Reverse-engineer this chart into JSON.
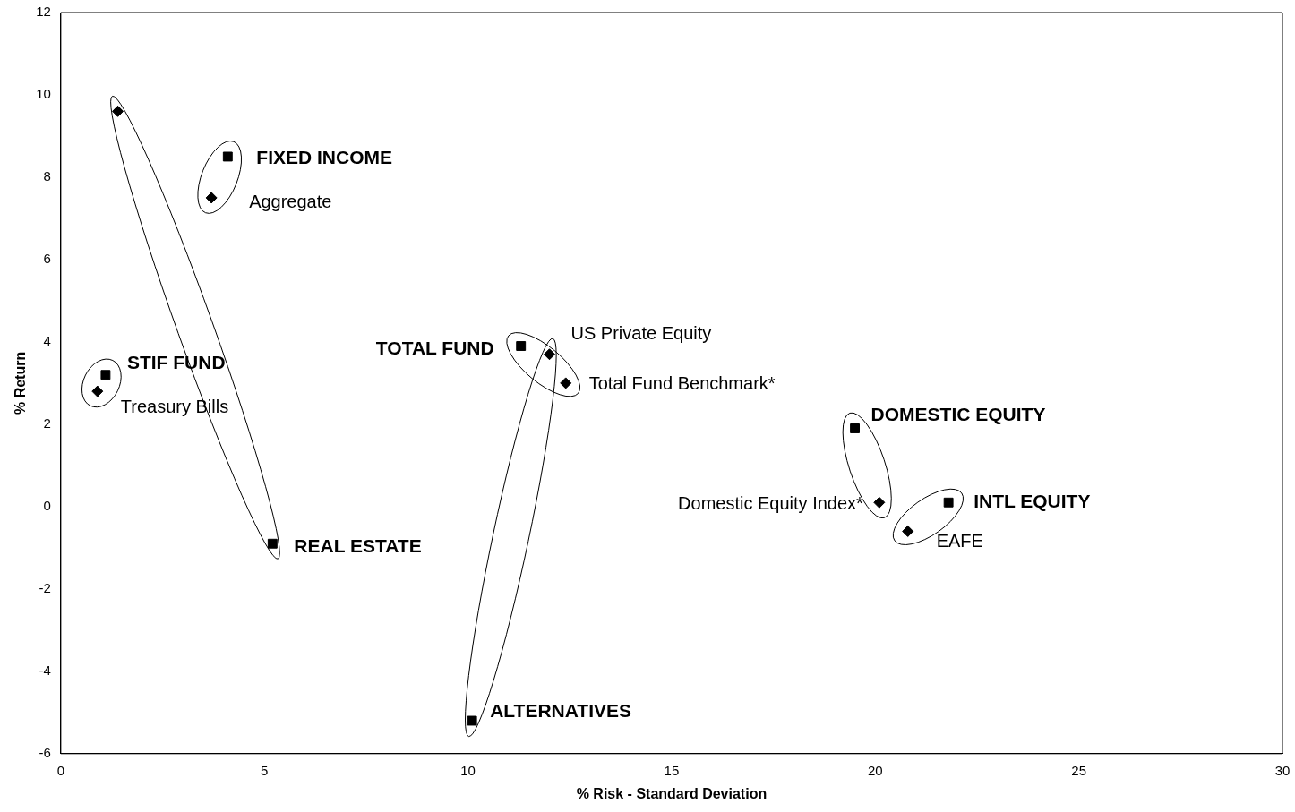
{
  "chart_data": {
    "type": "scatter",
    "xlabel": "% Risk - Standard Deviation",
    "ylabel": "% Return",
    "xlim": [
      0,
      30
    ],
    "xticks": [
      0,
      5,
      10,
      15,
      20,
      25,
      30
    ],
    "ylim": [
      -6,
      12
    ],
    "yticks": [
      -6,
      -4,
      -2,
      0,
      2,
      4,
      6,
      8,
      10,
      12
    ],
    "grid": false,
    "legend": false,
    "series": [
      {
        "marker": "square",
        "color": "#000000",
        "x": [
          4.1,
          1.1,
          5.2,
          11.3,
          10.1,
          19.5,
          21.8
        ],
        "values": [
          8.5,
          3.2,
          -0.9,
          3.9,
          -5.2,
          1.9,
          0.1
        ],
        "value_labels": [
          "FIXED INCOME",
          "STIF FUND",
          "REAL ESTATE",
          "TOTAL FUND",
          "ALTERNATIVES",
          "DOMESTIC EQUITY",
          "INTL EQUITY"
        ]
      },
      {
        "marker": "diamond",
        "color": "#000000",
        "x": [
          3.7,
          0.9,
          1.4,
          12.4,
          12.0,
          20.1,
          20.8
        ],
        "values": [
          7.5,
          2.8,
          9.6,
          3.0,
          3.7,
          0.1,
          -0.6
        ],
        "value_labels": [
          "Aggregate",
          "Treasury Bills",
          null,
          "Total Fund Benchmark*",
          "US Private Equity",
          "Domestic Equity Index*",
          "EAFE"
        ]
      }
    ]
  }
}
